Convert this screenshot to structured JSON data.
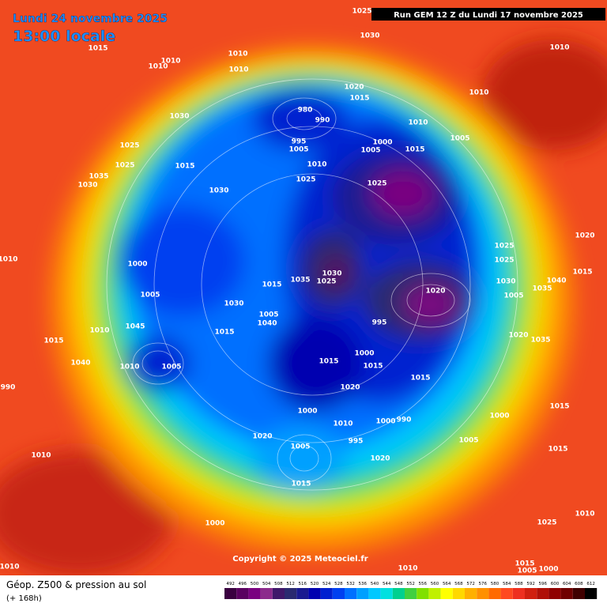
{
  "header": {
    "date": "Lundi 24 novembre 2025",
    "time": "13:00 locale",
    "run": "Run GEM 12 Z du Lundi 17 novembre 2025"
  },
  "copyright": "Copyright © 2025 Meteociel.fr",
  "footer": {
    "title": "Géop. Z500 & pression au sol",
    "lead": "(+ 168h)"
  },
  "legend": {
    "labels": [
      492,
      496,
      500,
      504,
      508,
      512,
      516,
      520,
      524,
      528,
      532,
      536,
      540,
      544,
      548,
      552,
      556,
      560,
      564,
      568,
      572,
      576,
      580,
      584,
      588,
      592,
      596,
      600,
      604,
      608,
      612
    ],
    "colors": [
      "#3a0040",
      "#5a0060",
      "#7a0080",
      "#8c2a8c",
      "#40186a",
      "#2a2a70",
      "#1a1a90",
      "#0000b0",
      "#0020d0",
      "#0040f0",
      "#0070ff",
      "#00a0ff",
      "#00c8ff",
      "#00e0e0",
      "#00d090",
      "#40d040",
      "#80e000",
      "#c0f000",
      "#ffff00",
      "#ffd800",
      "#ffb000",
      "#ff9000",
      "#ff6a00",
      "#ff4a20",
      "#ee3020",
      "#d02010",
      "#b01008",
      "#900000",
      "#700000",
      "#400000",
      "#000000"
    ]
  },
  "isobar_labels": [
    "1025",
    "1030",
    "1015",
    "1010",
    "1010",
    "1010",
    "1010",
    "1010",
    "1020",
    "1015",
    "1010",
    "1030",
    "980",
    "990",
    "995",
    "1005",
    "1025",
    "1025",
    "1015",
    "1010",
    "1035",
    "1030",
    "1025",
    "1030",
    "1000",
    "1005",
    "1015",
    "1010",
    "1005",
    "1025",
    "1000",
    "1005",
    "1010",
    "1020",
    "1025",
    "1025",
    "1015",
    "1040",
    "1035",
    "1030",
    "1030",
    "1025",
    "1015",
    "1035",
    "1030",
    "1020",
    "995",
    "1005",
    "1040",
    "1045",
    "1010",
    "1015",
    "1015",
    "1020",
    "1035",
    "1040",
    "1010",
    "1005",
    "990",
    "1015",
    "1000",
    "1015",
    "1015",
    "1020",
    "1000",
    "1010",
    "1000",
    "990",
    "1000",
    "1015",
    "1020",
    "1005",
    "995",
    "1005",
    "1020",
    "1010",
    "1015",
    "1015",
    "1000",
    "1025",
    "1010",
    "1010",
    "1010",
    "1015",
    "1005",
    "1000",
    "1005"
  ]
}
